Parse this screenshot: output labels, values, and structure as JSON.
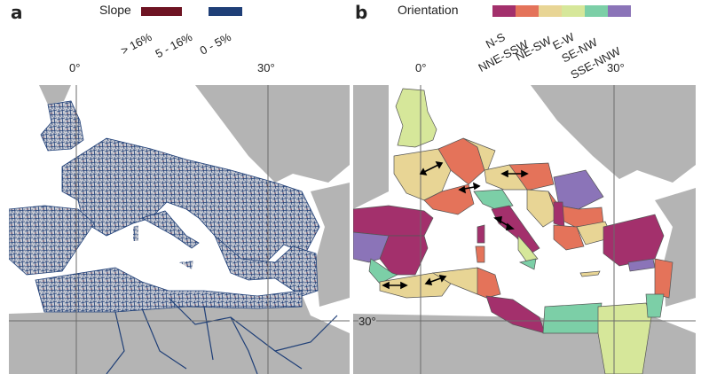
{
  "panel_a": {
    "letter": "a",
    "legend_title": "Slope",
    "legend": [
      {
        "label": "> 16%",
        "color": "#6e1423"
      },
      {
        "label": "5 - 16%",
        "color": "#ffffff"
      },
      {
        "label": "0 - 5%",
        "color": "#1f3f77"
      }
    ],
    "lon_labels": [
      "0°",
      "30°"
    ]
  },
  "panel_b": {
    "letter": "b",
    "legend_title": "Orientation",
    "legend": [
      {
        "label": "N-S",
        "color": "#a3306c"
      },
      {
        "label": "NNE-SSW",
        "color": "#e4735a"
      },
      {
        "label": "NE-SW",
        "color": "#e8d595"
      },
      {
        "label": "E-W",
        "color": "#d6e79a"
      },
      {
        "label": "SE-NW",
        "color": "#7ccfa7"
      },
      {
        "label": "SSE-NNW",
        "color": "#8b74b8"
      }
    ],
    "lon_labels": [
      "0°",
      "30°"
    ],
    "lat_label": "30°"
  },
  "colors": {
    "sea": "#ffffff",
    "land_outside": "#b4b4b4",
    "grid": "#6b6b6b",
    "road": "#1f3f77"
  }
}
